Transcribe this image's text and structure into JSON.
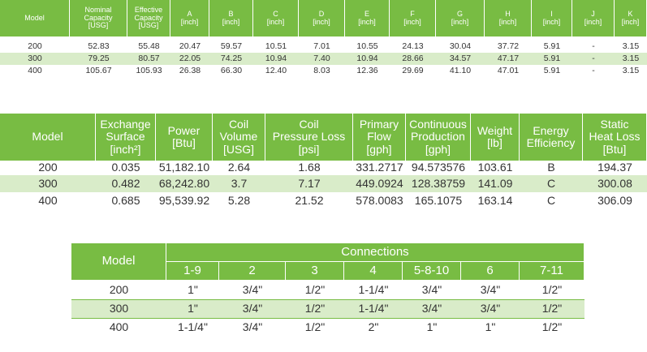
{
  "tables": [
    {
      "header": [
        [
          "Model"
        ],
        [
          "Nominal",
          "Capacity",
          "[USG]"
        ],
        [
          "Effective",
          "Capacity",
          "[USG]"
        ],
        [
          "A",
          "[inch]"
        ],
        [
          "B",
          "[inch]"
        ],
        [
          "C",
          "[inch]"
        ],
        [
          "D",
          "[inch]"
        ],
        [
          "E",
          "[inch]"
        ],
        [
          "F",
          "[inch]"
        ],
        [
          "G",
          "[inch]"
        ],
        [
          "H",
          "[inch]"
        ],
        [
          "I",
          "[inch]"
        ],
        [
          "J",
          "[inch]"
        ],
        [
          "K",
          "[inch]"
        ]
      ],
      "rows": [
        [
          "200",
          "52.83",
          "55.48",
          "20.47",
          "59.57",
          "10.51",
          "7.01",
          "10.55",
          "24.13",
          "30.04",
          "37.72",
          "5.91",
          "-",
          "3.15"
        ],
        [
          "300",
          "79.25",
          "80.57",
          "22.05",
          "74.25",
          "10.94",
          "7.40",
          "10.94",
          "28.66",
          "34.57",
          "47.17",
          "5.91",
          "-",
          "3.15"
        ],
        [
          "400",
          "105.67",
          "105.93",
          "26.38",
          "66.30",
          "12.40",
          "8.03",
          "12.36",
          "29.69",
          "41.10",
          "47.01",
          "5.91",
          "-",
          "3.15"
        ]
      ]
    },
    {
      "header": [
        [
          "Model"
        ],
        [
          "Exchange",
          "Surface",
          "[inch²]"
        ],
        [
          "Power",
          "[Btu]"
        ],
        [
          "Coil",
          "Volume",
          "[USG]"
        ],
        [
          "Coil",
          "Pressure Loss",
          "[psi]"
        ],
        [
          "Primary",
          "Flow",
          "[gph]"
        ],
        [
          "Continuous",
          "Production",
          "[gph]"
        ],
        [
          "Weight",
          "[lb]"
        ],
        [
          "Energy",
          "Efficiency"
        ],
        [
          "Static",
          "Heat Loss",
          "[Btu]"
        ]
      ],
      "rows": [
        [
          "200",
          "0.035",
          "51,182.10",
          "2.64",
          "1.68",
          "331.2717",
          "94.573576",
          "103.61",
          "B",
          "194.37"
        ],
        [
          "300",
          "0.482",
          "68,242.80",
          "3.7",
          "7.17",
          "449.0924",
          "128.38759",
          "141.09",
          "C",
          "300.08"
        ],
        [
          "400",
          "0.685",
          "95,539.92",
          "5.28",
          "21.52",
          "578.0083",
          "165.1075",
          "163.14",
          "C",
          "306.09"
        ]
      ]
    },
    {
      "header": {
        "model": "Model",
        "group": "Connections",
        "columns": [
          "1-9",
          "2",
          "3",
          "4",
          "5-8-10",
          "6",
          "7-11"
        ]
      },
      "rows": [
        [
          "200",
          "1\"",
          "3/4\"",
          "1/2\"",
          "1-1/4\"",
          "3/4\"",
          "3/4\"",
          "1/2\""
        ],
        [
          "300",
          "1\"",
          "3/4\"",
          "1/2\"",
          "1-1/4\"",
          "3/4\"",
          "3/4\"",
          "1/2\""
        ],
        [
          "400",
          "1-1/4\"",
          "3/4\"",
          "1/2\"",
          "2\"",
          "1\"",
          "1\"",
          "1/2\""
        ]
      ]
    }
  ]
}
